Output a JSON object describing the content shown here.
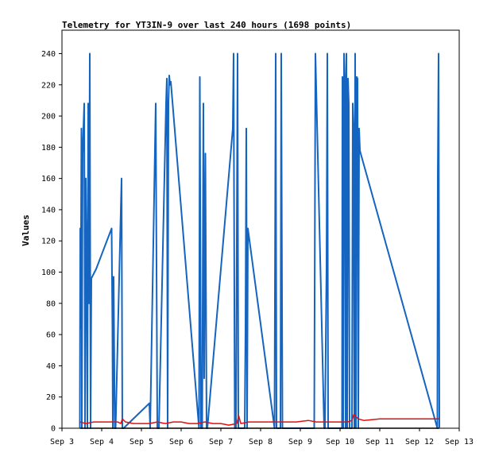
{
  "chart_data": {
    "type": "line",
    "title": "Telemetry for YT3IN-9 over last 240 hours (1698 points)",
    "xlabel": "",
    "ylabel": "Values",
    "x_ticks": [
      "Sep 3",
      "Sep 4",
      "Sep 5",
      "Sep 6",
      "Sep 7",
      "Sep 8",
      "Sep 9",
      "Sep 10",
      "Sep 11",
      "Sep 12",
      "Sep 13"
    ],
    "xlim": [
      3,
      13
    ],
    "ylim": [
      0,
      255
    ],
    "y_ticks": [
      0,
      20,
      40,
      60,
      80,
      100,
      120,
      140,
      160,
      180,
      200,
      220,
      240
    ],
    "grid": false,
    "colors": {
      "blue": "#1464c0",
      "red": "#e01010",
      "black": "#000000"
    },
    "series": [
      {
        "color": "blue",
        "x": [
          3.45,
          3.46,
          3.47,
          3.49,
          3.5,
          3.52,
          3.56,
          3.58,
          3.6,
          3.62,
          3.64,
          3.66,
          3.68,
          3.7,
          3.72,
          3.74,
          3.76,
          3.78,
          3.8,
          3.82,
          3.84,
          3.86,
          4.25,
          4.27,
          4.28,
          4.3,
          4.33,
          4.35,
          4.5,
          4.52,
          4.55,
          5.2,
          5.22,
          5.36,
          5.38,
          5.4,
          5.42,
          5.44,
          5.62,
          5.64,
          5.66,
          5.68,
          5.7,
          5.72,
          5.74,
          6.45,
          6.47,
          6.5,
          6.53,
          6.56,
          6.58,
          6.61,
          6.64,
          6.66,
          7.3,
          7.32,
          7.35,
          7.38,
          7.42,
          7.44,
          7.46,
          7.6,
          7.62,
          7.64,
          7.66,
          7.68,
          8.35,
          8.38,
          8.4,
          8.5,
          8.52,
          8.55,
          9.35,
          9.38,
          9.6,
          9.62,
          9.66,
          9.68,
          9.7,
          10.05,
          10.06,
          10.08,
          10.1,
          10.12,
          10.14,
          10.16,
          10.18,
          10.2,
          10.22,
          10.24,
          10.26,
          10.3,
          10.32,
          10.34,
          10.36,
          10.38,
          10.4,
          10.42,
          10.44,
          10.46,
          10.48,
          10.5,
          10.52,
          12.45,
          12.46,
          12.48,
          12.5
        ],
        "y": [
          0,
          128,
          64,
          192,
          0,
          176,
          208,
          0,
          160,
          112,
          0,
          208,
          80,
          240,
          0,
          96,
          97,
          98,
          99,
          100,
          101,
          102,
          128,
          64,
          0,
          97,
          0,
          0,
          160,
          0,
          0,
          16,
          0,
          208,
          104,
          0,
          0,
          0,
          208,
          224,
          0,
          208,
          226,
          220,
          222,
          0,
          225,
          0,
          0,
          208,
          32,
          176,
          0,
          0,
          192,
          240,
          0,
          0,
          240,
          0,
          0,
          0,
          64,
          192,
          0,
          128,
          0,
          240,
          0,
          0,
          240,
          0,
          0,
          240,
          0,
          0,
          104,
          240,
          0,
          0,
          225,
          0,
          240,
          224,
          0,
          240,
          0,
          224,
          208,
          0,
          0,
          0,
          208,
          192,
          0,
          240,
          0,
          225,
          224,
          0,
          192,
          178,
          176,
          0,
          160,
          240,
          0
        ]
      },
      {
        "color": "red",
        "x": [
          3.45,
          3.6,
          3.8,
          4.0,
          4.2,
          4.4,
          4.48,
          4.52,
          4.6,
          4.8,
          5.0,
          5.2,
          5.4,
          5.6,
          5.8,
          6.0,
          6.2,
          6.4,
          6.6,
          6.8,
          7.0,
          7.2,
          7.4,
          7.45,
          7.5,
          7.7,
          8.0,
          8.3,
          8.6,
          8.9,
          9.2,
          9.4,
          9.6,
          9.8,
          10.0,
          10.2,
          10.3,
          10.35,
          10.45,
          10.6,
          11.0,
          11.5,
          12.0,
          12.5
        ],
        "y": [
          4,
          3,
          4,
          4,
          4,
          4,
          3,
          6,
          4,
          3,
          3,
          3,
          4,
          3,
          4,
          4,
          3,
          3,
          4,
          3,
          3,
          2,
          3,
          8,
          3,
          4,
          4,
          4,
          4,
          4,
          5,
          4,
          4,
          4,
          4,
          4,
          5,
          9,
          6,
          5,
          6,
          6,
          6,
          6
        ]
      },
      {
        "color": "black",
        "x": [
          3.45,
          12.5
        ],
        "y": [
          0,
          0
        ]
      }
    ]
  }
}
